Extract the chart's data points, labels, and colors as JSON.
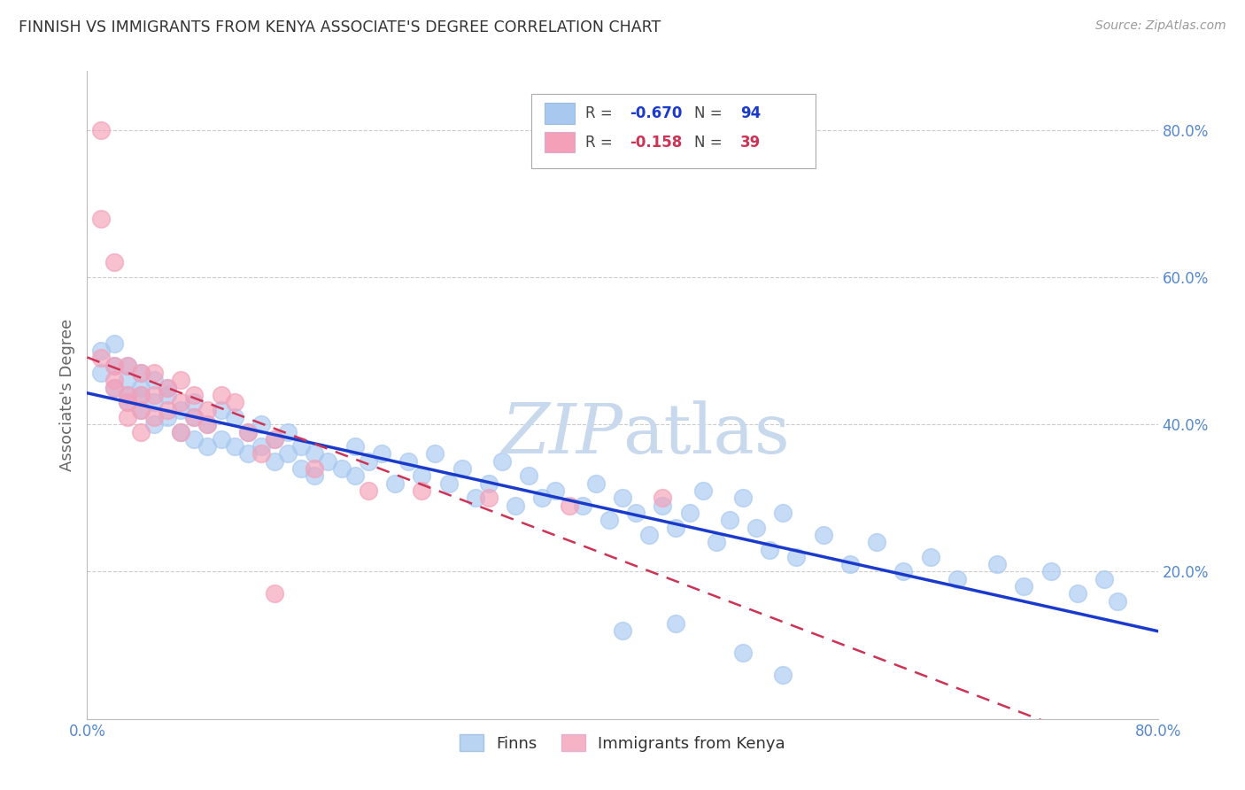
{
  "title": "FINNISH VS IMMIGRANTS FROM KENYA ASSOCIATE'S DEGREE CORRELATION CHART",
  "source_text": "Source: ZipAtlas.com",
  "ylabel_left": "Associate's Degree",
  "x_min": 0.0,
  "x_max": 0.8,
  "y_min": 0.0,
  "y_max": 0.88,
  "right_yticks": [
    0.2,
    0.4,
    0.6,
    0.8
  ],
  "right_ytick_labels": [
    "20.0%",
    "40.0%",
    "60.0%",
    "80.0%"
  ],
  "blue_color": "#a8c8f0",
  "pink_color": "#f4a0b8",
  "blue_line_color": "#1a3acc",
  "pink_line_color": "#cc3355",
  "axis_color": "#5588cc",
  "grid_color": "#cccccc",
  "title_color": "#333333",
  "watermark_color": "#c8d8ed",
  "legend_R_blue": "-0.670",
  "legend_N_blue": "94",
  "legend_R_pink": "-0.158",
  "legend_N_pink": "39",
  "legend_label_blue": "Finns",
  "legend_label_pink": "Immigrants from Kenya",
  "finns_x": [
    0.01,
    0.01,
    0.02,
    0.02,
    0.02,
    0.03,
    0.03,
    0.03,
    0.03,
    0.04,
    0.04,
    0.04,
    0.04,
    0.05,
    0.05,
    0.05,
    0.06,
    0.06,
    0.06,
    0.07,
    0.07,
    0.08,
    0.08,
    0.08,
    0.09,
    0.09,
    0.1,
    0.1,
    0.11,
    0.11,
    0.12,
    0.12,
    0.13,
    0.13,
    0.14,
    0.14,
    0.15,
    0.15,
    0.16,
    0.16,
    0.17,
    0.17,
    0.18,
    0.19,
    0.2,
    0.2,
    0.21,
    0.22,
    0.23,
    0.24,
    0.25,
    0.26,
    0.27,
    0.28,
    0.29,
    0.3,
    0.31,
    0.32,
    0.33,
    0.34,
    0.35,
    0.37,
    0.38,
    0.39,
    0.4,
    0.41,
    0.42,
    0.43,
    0.44,
    0.45,
    0.46,
    0.47,
    0.48,
    0.49,
    0.5,
    0.51,
    0.52,
    0.53,
    0.55,
    0.57,
    0.59,
    0.61,
    0.63,
    0.65,
    0.68,
    0.7,
    0.72,
    0.74,
    0.76,
    0.77,
    0.49,
    0.52,
    0.44,
    0.4
  ],
  "finns_y": [
    0.5,
    0.47,
    0.48,
    0.45,
    0.51,
    0.46,
    0.44,
    0.48,
    0.43,
    0.45,
    0.42,
    0.47,
    0.44,
    0.43,
    0.46,
    0.4,
    0.44,
    0.41,
    0.45,
    0.42,
    0.39,
    0.41,
    0.38,
    0.43,
    0.4,
    0.37,
    0.42,
    0.38,
    0.41,
    0.37,
    0.39,
    0.36,
    0.4,
    0.37,
    0.38,
    0.35,
    0.39,
    0.36,
    0.37,
    0.34,
    0.36,
    0.33,
    0.35,
    0.34,
    0.37,
    0.33,
    0.35,
    0.36,
    0.32,
    0.35,
    0.33,
    0.36,
    0.32,
    0.34,
    0.3,
    0.32,
    0.35,
    0.29,
    0.33,
    0.3,
    0.31,
    0.29,
    0.32,
    0.27,
    0.3,
    0.28,
    0.25,
    0.29,
    0.26,
    0.28,
    0.31,
    0.24,
    0.27,
    0.3,
    0.26,
    0.23,
    0.28,
    0.22,
    0.25,
    0.21,
    0.24,
    0.2,
    0.22,
    0.19,
    0.21,
    0.18,
    0.2,
    0.17,
    0.19,
    0.16,
    0.09,
    0.06,
    0.13,
    0.12
  ],
  "kenya_x": [
    0.01,
    0.01,
    0.01,
    0.02,
    0.02,
    0.02,
    0.02,
    0.03,
    0.03,
    0.03,
    0.03,
    0.04,
    0.04,
    0.04,
    0.04,
    0.05,
    0.05,
    0.05,
    0.06,
    0.06,
    0.07,
    0.07,
    0.07,
    0.08,
    0.08,
    0.09,
    0.09,
    0.1,
    0.11,
    0.12,
    0.13,
    0.14,
    0.17,
    0.21,
    0.25,
    0.3,
    0.36,
    0.43,
    0.14
  ],
  "kenya_y": [
    0.8,
    0.68,
    0.49,
    0.62,
    0.48,
    0.46,
    0.45,
    0.44,
    0.48,
    0.41,
    0.43,
    0.47,
    0.42,
    0.44,
    0.39,
    0.44,
    0.41,
    0.47,
    0.42,
    0.45,
    0.43,
    0.39,
    0.46,
    0.41,
    0.44,
    0.4,
    0.42,
    0.44,
    0.43,
    0.39,
    0.36,
    0.38,
    0.34,
    0.31,
    0.31,
    0.3,
    0.29,
    0.3,
    0.17
  ]
}
